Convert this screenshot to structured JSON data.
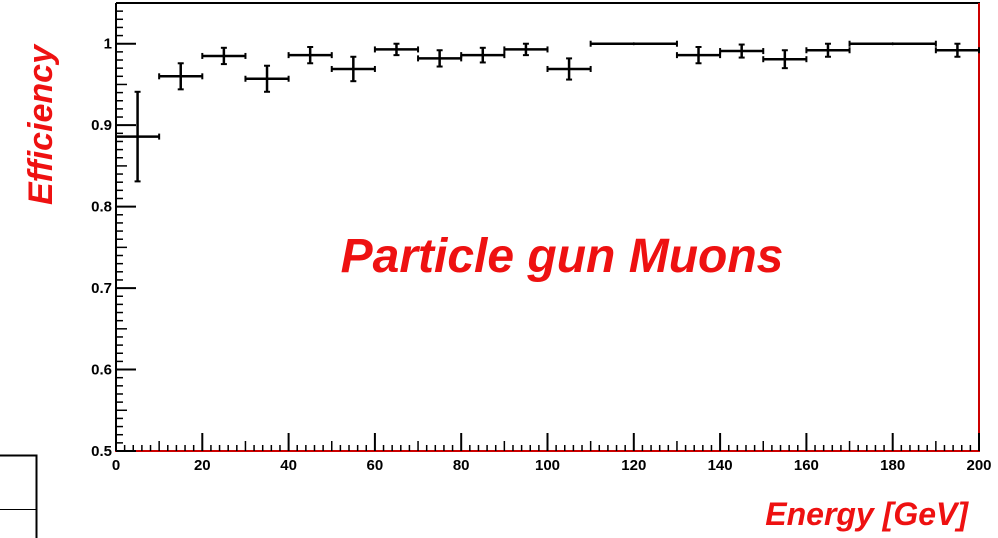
{
  "chart_data": {
    "type": "scatter",
    "title": "",
    "xlabel": "Energy [GeV]",
    "ylabel": "Efficiency",
    "annotation": "Particle gun Muons",
    "xlim": [
      0,
      200
    ],
    "ylim": [
      0.5,
      1.05
    ],
    "x_ticks": [
      0,
      20,
      40,
      60,
      80,
      100,
      120,
      140,
      160,
      180,
      200
    ],
    "y_ticks": [
      0.5,
      0.6,
      0.7,
      0.8,
      0.9,
      1
    ],
    "x_tick_labels": [
      "0",
      "20",
      "40",
      "60",
      "80",
      "100",
      "120",
      "140",
      "160",
      "180",
      "200"
    ],
    "y_tick_labels": [
      "0.5",
      "0.6",
      "0.7",
      "0.8",
      "0.9",
      "1"
    ],
    "grid": false,
    "legend": "none",
    "colors": {
      "markers": "#000000",
      "label_text": "#ee1111",
      "frame_right_bottom": "#cc0000",
      "frame_left_top": "#000000"
    },
    "series": [
      {
        "points": [
          {
            "x": 5,
            "y": 0.886,
            "xerr": 5,
            "ylo": 0.055,
            "yhi": 0.055
          },
          {
            "x": 15,
            "y": 0.96,
            "xerr": 5,
            "ylo": 0.016,
            "yhi": 0.016
          },
          {
            "x": 25,
            "y": 0.985,
            "xerr": 5,
            "ylo": 0.01,
            "yhi": 0.01
          },
          {
            "x": 35,
            "y": 0.957,
            "xerr": 5,
            "ylo": 0.016,
            "yhi": 0.016
          },
          {
            "x": 45,
            "y": 0.986,
            "xerr": 5,
            "ylo": 0.01,
            "yhi": 0.01
          },
          {
            "x": 55,
            "y": 0.969,
            "xerr": 5,
            "ylo": 0.015,
            "yhi": 0.015
          },
          {
            "x": 65,
            "y": 0.993,
            "xerr": 5,
            "ylo": 0.007,
            "yhi": 0.007
          },
          {
            "x": 75,
            "y": 0.982,
            "xerr": 5,
            "ylo": 0.01,
            "yhi": 0.01
          },
          {
            "x": 85,
            "y": 0.986,
            "xerr": 5,
            "ylo": 0.009,
            "yhi": 0.009
          },
          {
            "x": 95,
            "y": 0.993,
            "xerr": 5,
            "ylo": 0.007,
            "yhi": 0.007
          },
          {
            "x": 105,
            "y": 0.969,
            "xerr": 5,
            "ylo": 0.013,
            "yhi": 0.013
          },
          {
            "x": 120,
            "y": 1.0,
            "xerr": 10,
            "ylo": 0.0,
            "yhi": 0.0
          },
          {
            "x": 135,
            "y": 0.986,
            "xerr": 5,
            "ylo": 0.01,
            "yhi": 0.01
          },
          {
            "x": 145,
            "y": 0.991,
            "xerr": 5,
            "ylo": 0.008,
            "yhi": 0.008
          },
          {
            "x": 155,
            "y": 0.981,
            "xerr": 5,
            "ylo": 0.011,
            "yhi": 0.011
          },
          {
            "x": 165,
            "y": 0.992,
            "xerr": 5,
            "ylo": 0.008,
            "yhi": 0.008
          },
          {
            "x": 180,
            "y": 1.0,
            "xerr": 10,
            "ylo": 0.0,
            "yhi": 0.0
          },
          {
            "x": 195,
            "y": 0.992,
            "xerr": 5,
            "ylo": 0.008,
            "yhi": 0.008
          }
        ]
      }
    ]
  }
}
